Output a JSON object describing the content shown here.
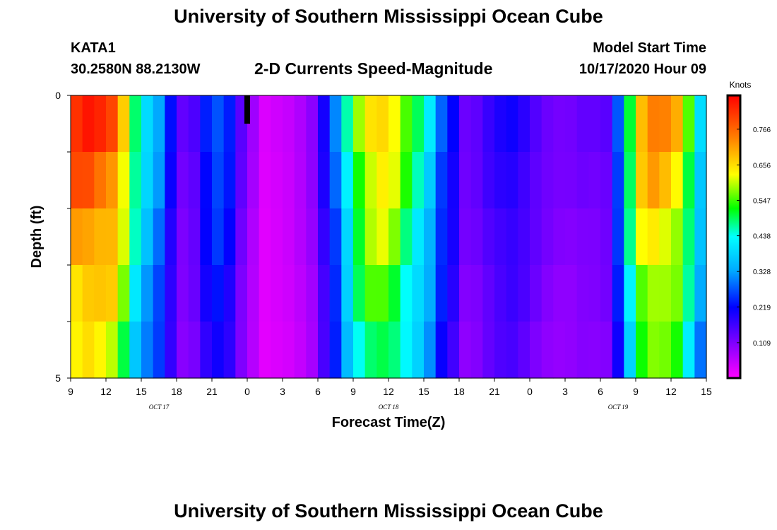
{
  "header": {
    "title": "University of Southern Mississippi Ocean Cube",
    "station": "KATA1",
    "coords": "30.2580N 88.2130W",
    "subtitle": "2-D Currents Speed-Magnitude",
    "model_start_label": "Model Start Time",
    "model_start_value": "10/17/2020 Hour 09"
  },
  "footer": {
    "title": "University of Southern Mississippi Ocean Cube"
  },
  "chart_data": {
    "type": "heatmap",
    "title": "2-D Currents Speed-Magnitude",
    "xlabel": "Forecast Time(Z)",
    "ylabel": "Depth (ft)",
    "x_tick_labels": [
      "9",
      "12",
      "15",
      "18",
      "21",
      "0",
      "3",
      "6",
      "9",
      "12",
      "15",
      "18",
      "21",
      "0",
      "3",
      "6",
      "9",
      "12",
      "15"
    ],
    "date_labels": [
      "OCT 17",
      "OCT 18",
      "OCT 19"
    ],
    "y_tick_labels": [
      "0",
      "5"
    ],
    "ylim": [
      0,
      5
    ],
    "colorbar": {
      "label": "Knots",
      "ticks": [
        "0.766",
        "0.656",
        "0.547",
        "0.438",
        "0.328",
        "0.219",
        "0.109"
      ],
      "range": [
        0.0,
        0.87
      ]
    },
    "depth_levels": 5,
    "hours": 54,
    "speed_profile_knots": [
      0.82,
      0.83,
      0.81,
      0.79,
      0.68,
      0.5,
      0.4,
      0.33,
      0.22,
      0.13,
      0.15,
      0.24,
      0.28,
      0.24,
      0.14,
      0.08,
      0.03,
      0.04,
      0.05,
      0.07,
      0.1,
      0.2,
      0.3,
      0.45,
      0.58,
      0.66,
      0.68,
      0.64,
      0.55,
      0.48,
      0.4,
      0.28,
      0.22,
      0.13,
      0.14,
      0.17,
      0.19,
      0.2,
      0.18,
      0.15,
      0.13,
      0.12,
      0.12,
      0.13,
      0.13,
      0.14,
      0.28,
      0.52,
      0.7,
      0.74,
      0.72,
      0.68,
      0.55,
      0.4
    ],
    "surface_marker_hour": 0
  }
}
